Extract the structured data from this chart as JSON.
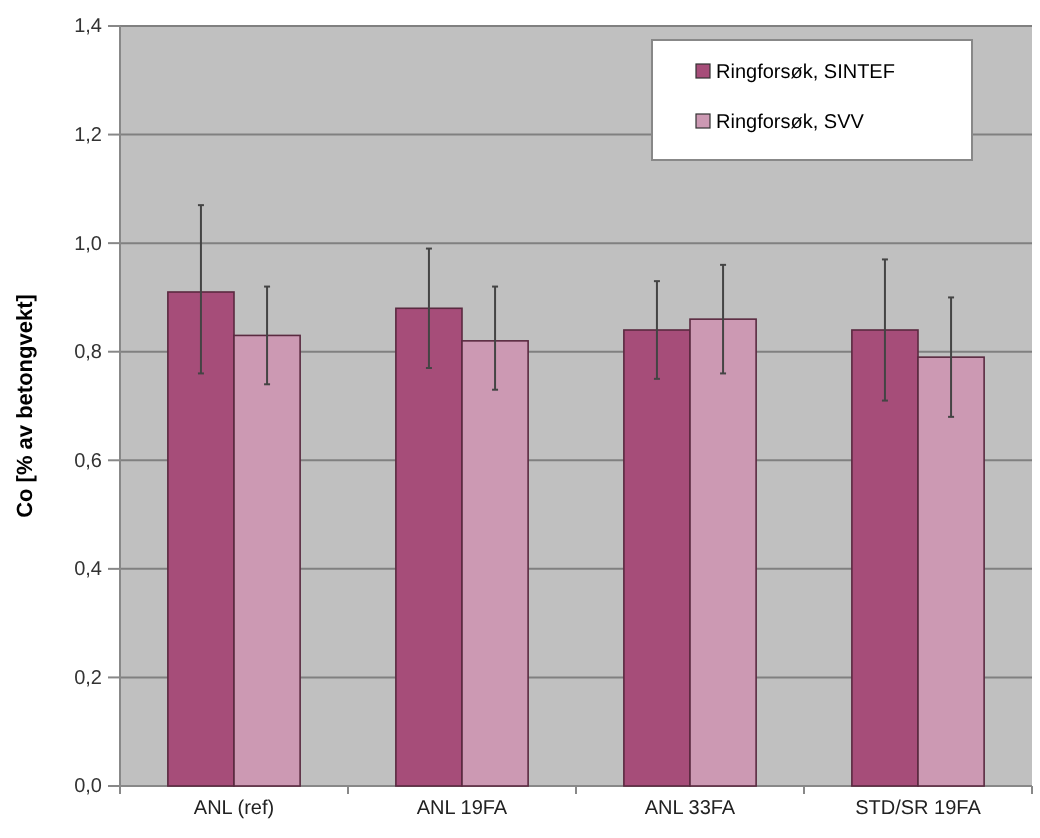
{
  "chart_data": {
    "type": "bar",
    "ylabel": "Co [% av betongvekt]",
    "categories": [
      "ANL (ref)",
      "ANL 19FA",
      "ANL 33FA",
      "STD/SR 19FA"
    ],
    "series": [
      {
        "name": "Ringforsøk, SINTEF",
        "color": "#a64d79",
        "values": [
          0.91,
          0.88,
          0.84,
          0.84
        ],
        "errors": [
          [
            0.76,
            1.07
          ],
          [
            0.77,
            0.99
          ],
          [
            0.75,
            0.93
          ],
          [
            0.71,
            0.97
          ]
        ]
      },
      {
        "name": "Ringforsøk, SVV",
        "color": "#cc99b3",
        "values": [
          0.83,
          0.82,
          0.86,
          0.79
        ],
        "errors": [
          [
            0.74,
            0.92
          ],
          [
            0.73,
            0.92
          ],
          [
            0.76,
            0.96
          ],
          [
            0.68,
            0.9
          ]
        ]
      }
    ],
    "ylim": [
      0,
      1.4
    ],
    "yticks": [
      {
        "value": 0,
        "label": "0,0"
      },
      {
        "value": 0.2,
        "label": "0,2"
      },
      {
        "value": 0.4,
        "label": "0,4"
      },
      {
        "value": 0.6,
        "label": "0,6"
      },
      {
        "value": 0.8,
        "label": "0,8"
      },
      {
        "value": 1.0,
        "label": "1,0"
      },
      {
        "value": 1.2,
        "label": "1,2"
      },
      {
        "value": 1.4,
        "label": "1,4"
      }
    ],
    "grid": "y",
    "legend": "top right"
  }
}
